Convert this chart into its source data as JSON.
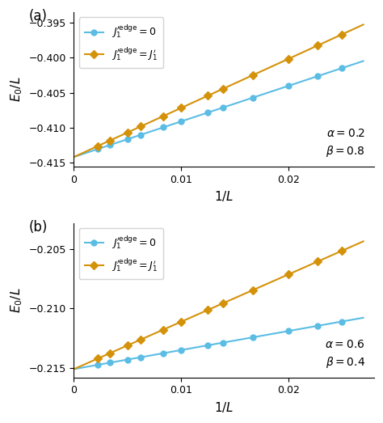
{
  "panel_a": {
    "label": "(a)",
    "alpha_val": 0.2,
    "beta_val": 0.8,
    "xlim": [
      0,
      0.028
    ],
    "ylim": [
      -0.4155,
      -0.3935
    ],
    "yticks": [
      -0.415,
      -0.41,
      -0.405,
      -0.4,
      -0.395
    ],
    "xticks": [
      0,
      0.01,
      0.02
    ],
    "ylabel": "$E_0/L$",
    "xlabel": "$1/L$",
    "blue_intercept": -0.41415,
    "blue_slope": 0.506,
    "orange_intercept": -0.41415,
    "orange_slope": 0.698,
    "L_values": [
      40,
      44,
      50,
      60,
      72,
      80,
      100,
      120,
      160,
      200,
      300,
      450
    ]
  },
  "panel_b": {
    "label": "(b)",
    "alpha_val": 0.6,
    "beta_val": 0.4,
    "xlim": [
      0,
      0.028
    ],
    "ylim": [
      -0.2158,
      -0.2028
    ],
    "yticks": [
      -0.215,
      -0.21,
      -0.205
    ],
    "xticks": [
      0,
      0.01,
      0.02
    ],
    "ylabel": "$E_0/L$",
    "xlabel": "$1/L$",
    "blue_intercept": -0.2151,
    "blue_slope": 0.16,
    "orange_intercept": -0.2151,
    "orange_slope": 0.398,
    "L_values": [
      40,
      44,
      50,
      60,
      72,
      80,
      100,
      120,
      160,
      200,
      300,
      450
    ]
  },
  "blue_color": "#5bbde4",
  "orange_color": "#d4920a",
  "legend_label_blue": "$J_1^{\\prime\\mathrm{edge}} = 0$",
  "legend_label_orange": "$J_1^{\\prime\\mathrm{edge}} = J_1^{\\prime}$"
}
